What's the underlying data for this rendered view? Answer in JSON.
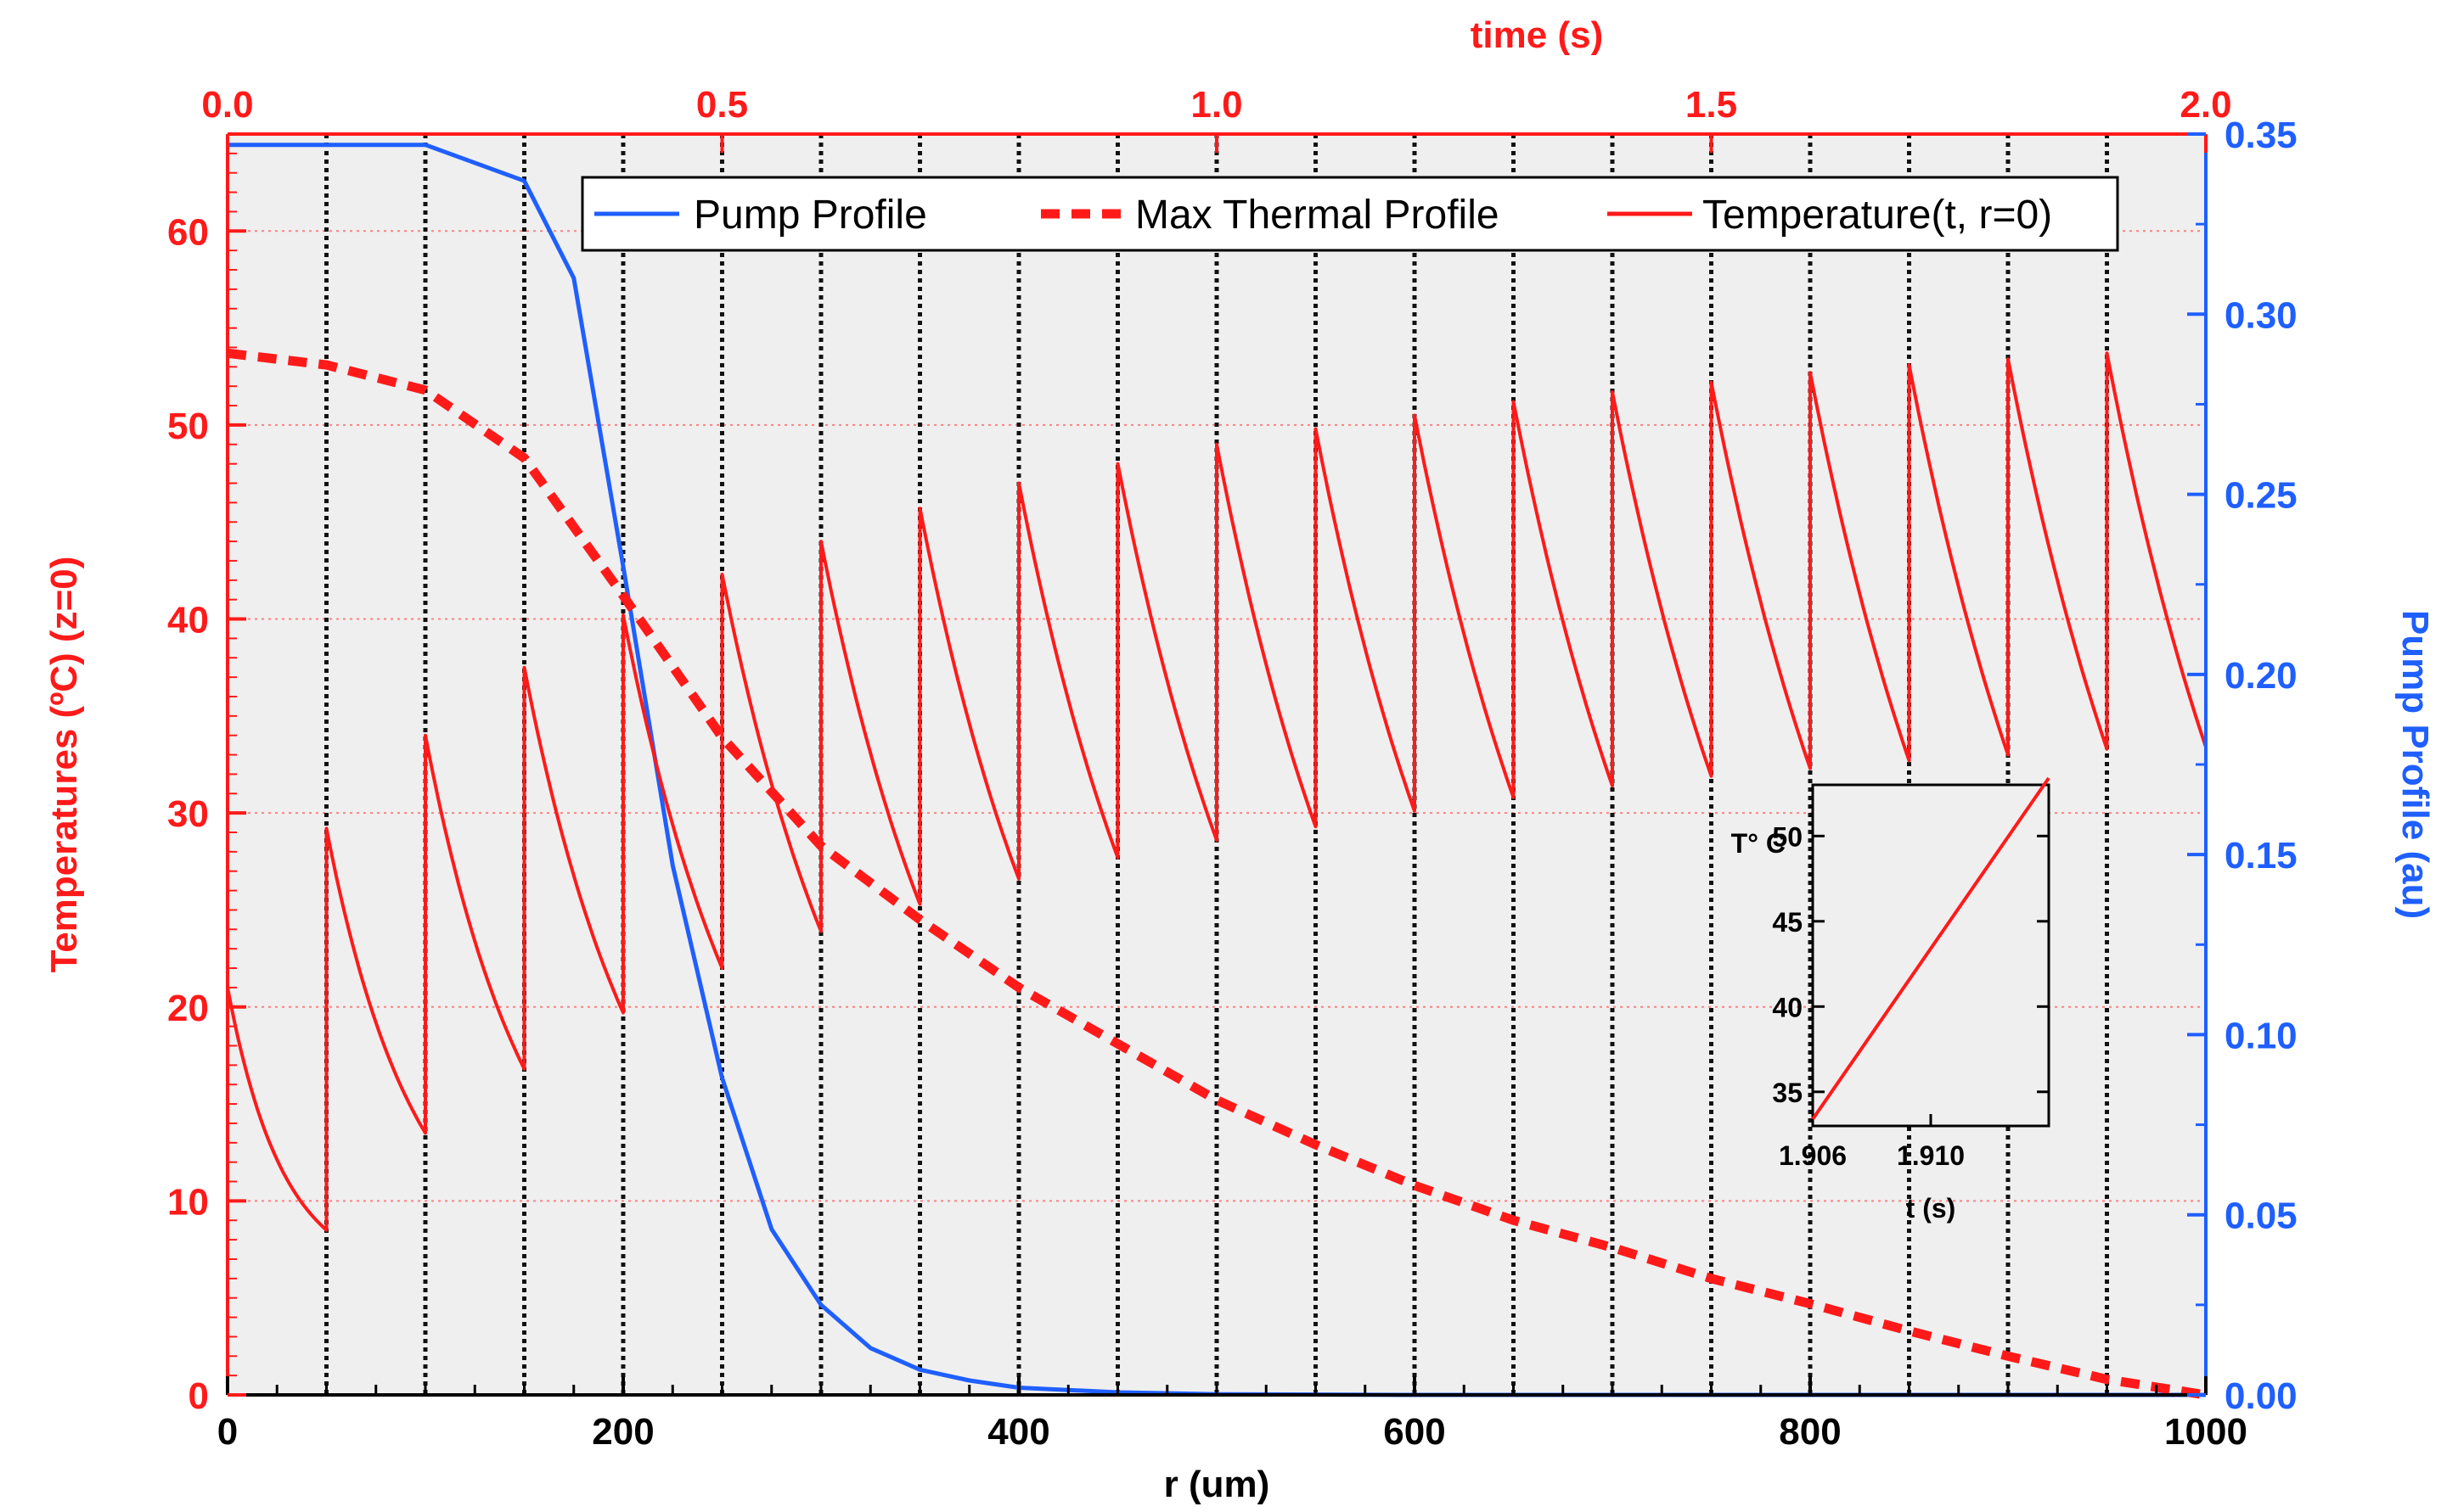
{
  "chart_data": {
    "type": "line",
    "axes": {
      "x_bottom": {
        "label": "r (um)",
        "range": [
          0,
          1000
        ],
        "ticks": [
          0,
          200,
          400,
          600,
          800,
          1000
        ],
        "color": "#000000"
      },
      "x_top": {
        "label": "time (s)",
        "range": [
          0.0,
          2.0
        ],
        "ticks": [
          "0.0",
          "0.5",
          "1.0",
          "1.5",
          "2.0"
        ],
        "color": "#ff1a1a"
      },
      "y_left": {
        "label": "Temperatures (ºC) (z=0)",
        "range": [
          0,
          65
        ],
        "ticks": [
          0,
          10,
          20,
          30,
          40,
          50,
          60
        ],
        "color": "#ff1a1a"
      },
      "y_right": {
        "label": "Pump Profile (au)",
        "range": [
          0.0,
          0.35
        ],
        "ticks": [
          "0.00",
          "0.05",
          "0.10",
          "0.15",
          "0.20",
          "0.25",
          "0.30",
          "0.35"
        ],
        "color": "#1f5fff"
      }
    },
    "legend": [
      {
        "label": "Pump Profile",
        "style": "solid",
        "color": "#1f5fff"
      },
      {
        "label": "Max Thermal Profile",
        "style": "dashed",
        "color": "#ff1a1a"
      },
      {
        "label": "Temperature(t, r=0)",
        "style": "solid",
        "color": "#ff1a1a"
      }
    ],
    "series": [
      {
        "name": "Pump Profile",
        "axis": "y_right",
        "color": "#1f5fff",
        "x": [
          0,
          50,
          100,
          150,
          175,
          200,
          225,
          250,
          275,
          300,
          325,
          350,
          375,
          400,
          450,
          500,
          600,
          800,
          1000
        ],
        "y": [
          0.347,
          0.347,
          0.347,
          0.337,
          0.31,
          0.23,
          0.147,
          0.088,
          0.046,
          0.025,
          0.013,
          0.007,
          0.004,
          0.002,
          0.0007,
          0.0002,
          0,
          0,
          0
        ]
      },
      {
        "name": "Max Thermal Profile",
        "axis": "y_left",
        "color": "#ff1a1a",
        "dashed": true,
        "x": [
          0,
          50,
          100,
          150,
          200,
          250,
          300,
          350,
          400,
          450,
          500,
          550,
          600,
          650,
          700,
          750,
          800,
          850,
          900,
          950,
          1000
        ],
        "y": [
          53.7,
          53.1,
          51.8,
          48.3,
          41.2,
          33.9,
          28.3,
          24.5,
          21.0,
          18.1,
          15.2,
          12.9,
          10.8,
          9.0,
          7.6,
          6.0,
          4.7,
          3.3,
          2.0,
          0.8,
          0.0
        ]
      },
      {
        "name": "Temperature(t, r=0)",
        "axis": "x_top",
        "color": "#ff1a1a",
        "pulse_period_s": 0.1,
        "pulse_start_s": [
          0.0,
          0.1,
          0.2,
          0.3,
          0.4,
          0.5,
          0.6,
          0.7,
          0.8,
          0.9,
          1.0,
          1.1,
          1.2,
          1.3,
          1.4,
          1.5,
          1.6,
          1.7,
          1.8,
          1.9
        ],
        "peak_temperature": [
          21,
          29.2,
          34,
          37.5,
          40.2,
          42.3,
          44,
          45.7,
          47,
          48,
          49,
          49.8,
          50.5,
          51.2,
          51.7,
          52.2,
          52.7,
          53.1,
          53.4,
          53.7
        ],
        "trough_temperature": [
          8.5,
          13.5,
          16.8,
          19.7,
          22,
          23.9,
          25.3,
          26.6,
          27.7,
          28.6,
          29.3,
          30.1,
          30.8,
          31.4,
          31.9,
          32.3,
          32.7,
          33.0,
          33.3,
          33.4
        ]
      }
    ],
    "pulse_markers_r": [
      50,
      100,
      150,
      200,
      250,
      300,
      350,
      400,
      450,
      500,
      550,
      600,
      650,
      700,
      750,
      800,
      850,
      900,
      950
    ],
    "inset": {
      "type": "line",
      "xlabel": "t (s)",
      "ylabel": "T° C",
      "x_range": [
        1.906,
        1.914
      ],
      "y_range": [
        33,
        53
      ],
      "x_ticks": [
        "1.906",
        "1.910"
      ],
      "y_ticks": [
        "35",
        "40",
        "45",
        "50"
      ],
      "x": [
        1.906,
        1.914
      ],
      "y": [
        33.4,
        53.4
      ]
    }
  }
}
